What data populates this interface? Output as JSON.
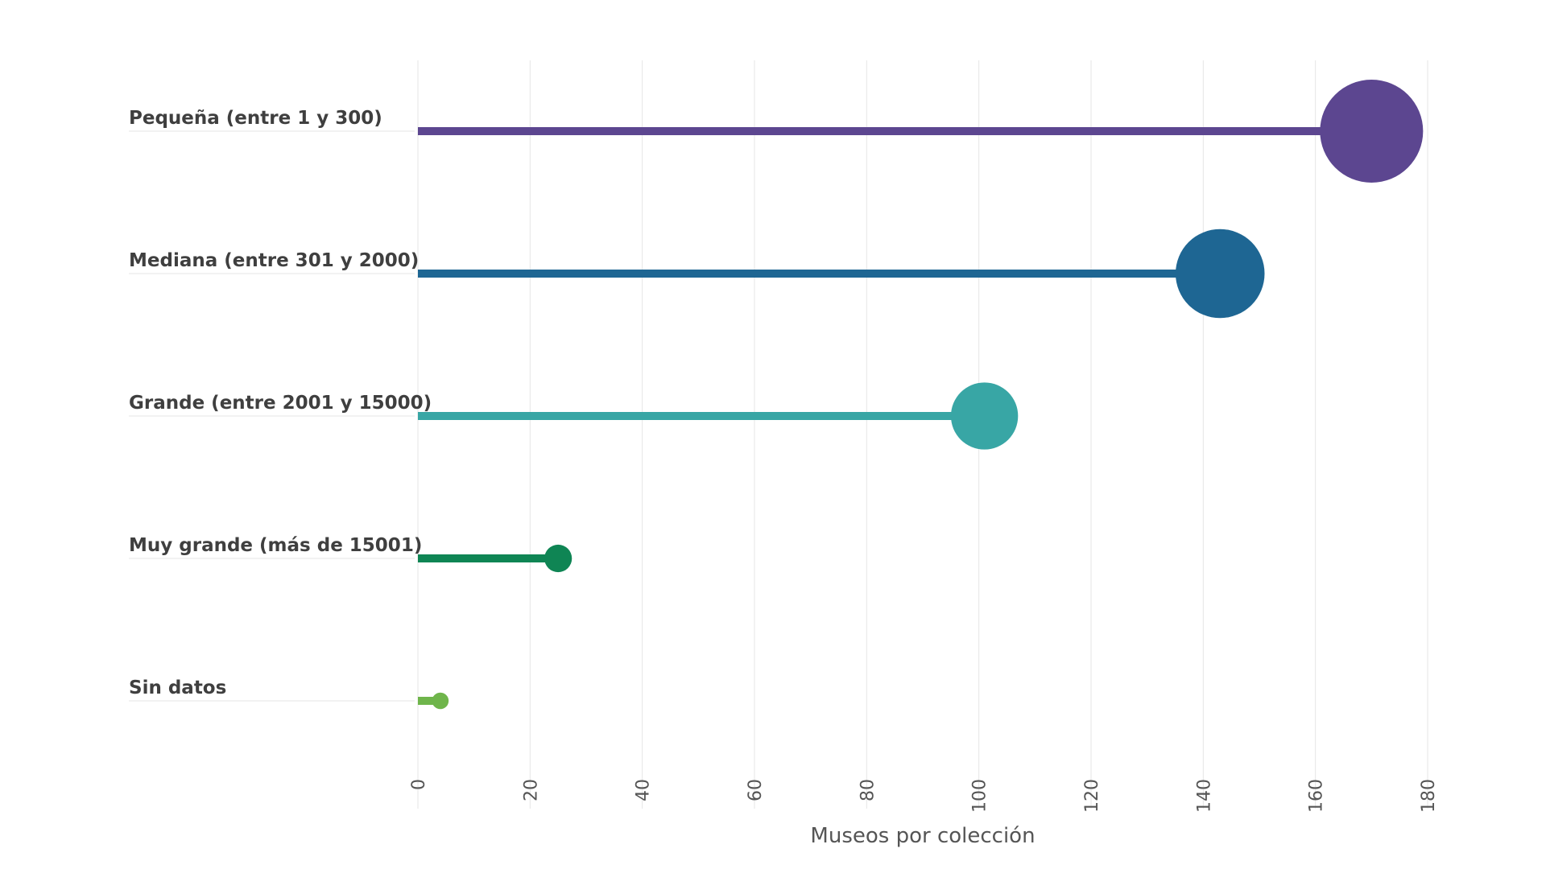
{
  "chart_data": {
    "type": "lollipop",
    "categories": [
      "Pequeña (entre 1 y 300)",
      "Mediana (entre 301 y 2000)",
      "Grande (entre 2001 y 15000)",
      "Muy grande (más de 15001)",
      "Sin datos"
    ],
    "values": [
      170,
      143,
      101,
      25,
      4
    ],
    "colors": [
      "#5c4690",
      "#1e6693",
      "#38a6a5",
      "#0f8554",
      "#6fb54b"
    ],
    "xlabel": "Museos por colección",
    "ylabel": "",
    "xlim": [
      0,
      180
    ],
    "xticks": [
      "0",
      "20",
      "40",
      "60",
      "80",
      "100",
      "120",
      "140",
      "160",
      "180"
    ],
    "grid": true
  }
}
